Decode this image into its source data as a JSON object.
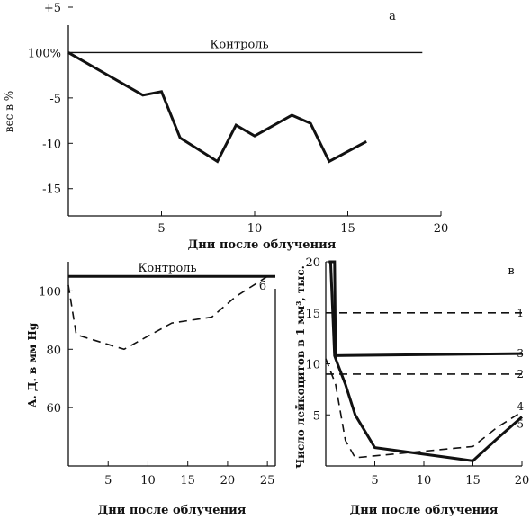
{
  "chart_data": [
    {
      "type": "line",
      "panel_letter": "а",
      "xlabel": "Дни после облучения",
      "ylabel": "вес в %",
      "xlim": [
        0,
        20
      ],
      "ylim": [
        -18,
        5
      ],
      "x_ticks": [
        5,
        10,
        15,
        20
      ],
      "y_ticks": [
        {
          "value": 5,
          "label": "+5"
        },
        {
          "value": 0,
          "label": "100%"
        },
        {
          "value": -5,
          "label": "-5"
        },
        {
          "value": -10,
          "label": "-10"
        },
        {
          "value": -15,
          "label": "-15"
        }
      ],
      "grid": false,
      "series": [
        {
          "name": "Контроль",
          "style": "solid-thin",
          "x": [
            0,
            19
          ],
          "y": [
            0,
            0
          ]
        },
        {
          "name": "",
          "style": "solid-bold",
          "x": [
            0,
            4,
            5,
            6,
            8,
            9,
            10,
            12,
            13,
            14,
            16
          ],
          "y": [
            0,
            -4.7,
            -4.3,
            -9.4,
            -12,
            -8,
            -9.2,
            -6.9,
            -7.8,
            -12,
            -9.8
          ]
        }
      ]
    },
    {
      "type": "line",
      "panel_letter": "б",
      "xlabel": "Дни после облучения",
      "ylabel": "А. Д. в мм Hg",
      "xlim": [
        0,
        26
      ],
      "ylim": [
        40,
        110
      ],
      "x_ticks": [
        5,
        10,
        15,
        20,
        25
      ],
      "y_ticks": [
        {
          "value": 100,
          "label": "100"
        },
        {
          "value": 80,
          "label": "80"
        },
        {
          "value": 60,
          "label": "60"
        }
      ],
      "grid": false,
      "series": [
        {
          "name": "Контроль",
          "style": "solid-bold",
          "x": [
            0,
            26
          ],
          "y": [
            105,
            105
          ]
        },
        {
          "name": "",
          "style": "dashed",
          "x": [
            0,
            1,
            7,
            13,
            18,
            21,
            25
          ],
          "y": [
            102,
            85,
            80,
            89,
            91,
            98,
            105
          ]
        }
      ]
    },
    {
      "type": "line",
      "panel_letter": "в",
      "xlabel": "Дни после облучения",
      "ylabel": "Число лейкоцитов в 1 мм³, тыс.",
      "xlim": [
        0,
        20
      ],
      "ylim": [
        0,
        20
      ],
      "x_ticks": [
        5,
        10,
        15,
        20
      ],
      "y_ticks": [
        {
          "value": 20,
          "label": "20"
        },
        {
          "value": 15,
          "label": "15"
        },
        {
          "value": 10,
          "label": "10"
        },
        {
          "value": 5,
          "label": "5"
        }
      ],
      "grid": false,
      "series": [
        {
          "name": "1",
          "style": "dashed",
          "x": [
            0,
            20
          ],
          "y": [
            15,
            15
          ]
        },
        {
          "name": "2",
          "style": "dashed",
          "x": [
            0,
            20
          ],
          "y": [
            9,
            9
          ]
        },
        {
          "name": "3",
          "style": "solid-bold",
          "x": [
            0.6,
            0.9,
            1.0,
            20
          ],
          "y": [
            20,
            20,
            10.8,
            11
          ]
        },
        {
          "name": "4",
          "style": "dashed",
          "x": [
            0,
            1,
            2,
            3,
            15,
            17.5,
            20
          ],
          "y": [
            10.5,
            8,
            2.5,
            0.8,
            1.9,
            3.8,
            5.3
          ]
        },
        {
          "name": "5",
          "style": "solid-bold",
          "x": [
            0.3,
            0.5,
            0.9,
            1.2,
            2,
            3,
            5,
            15,
            17.5,
            20
          ],
          "y": [
            20,
            20,
            10.8,
            10,
            8,
            5,
            1.8,
            0.5,
            2.7,
            4.8
          ]
        }
      ]
    }
  ]
}
